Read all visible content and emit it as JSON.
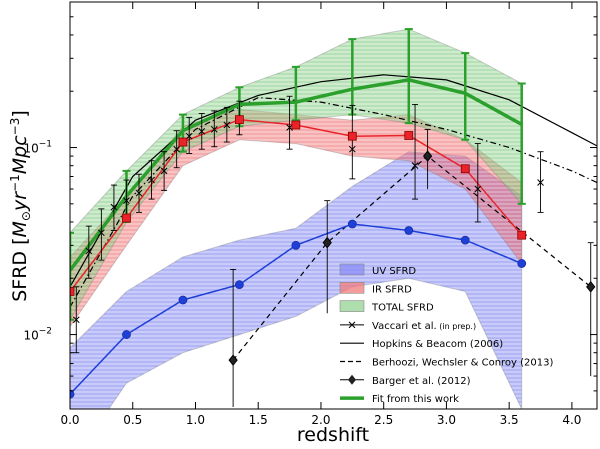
{
  "chart_data": {
    "type": "line",
    "xlabel": "redshift",
    "ylabel": "SFRD [M⊙yr⁻¹Mpc⁻³]",
    "ylabel_prefix": "SFRD [",
    "ylabel_unit": "M",
    "ylabel_unit_sub": "⊙",
    "ylabel_yr": "yr",
    "ylabel_yr_sup": "−1",
    "ylabel_mpc": "Mpc",
    "ylabel_mpc_sup": "−3",
    "ylabel_suffix": "]",
    "xlim": [
      0.0,
      4.2
    ],
    "ylim": [
      0.004,
      0.6
    ],
    "yscale": "log",
    "x_ticks": [
      "0.0",
      "0.5",
      "1.0",
      "1.5",
      "2.0",
      "2.5",
      "3.0",
      "3.5",
      "4.0"
    ],
    "x_tick_values": [
      0.0,
      0.5,
      1.0,
      1.5,
      2.0,
      2.5,
      3.0,
      3.5,
      4.0
    ],
    "y_ticks": [
      {
        "value": 0.01,
        "base": "10",
        "exp": "−2"
      },
      {
        "value": 0.1,
        "base": "10",
        "exp": "−1"
      }
    ],
    "legend_position": "lower-right",
    "series": [
      {
        "name": "UV SFRD",
        "kind": "band-line",
        "color": "#1f3fd9",
        "fill": "#8a8cf5",
        "x": [
          0.0,
          0.45,
          0.9,
          1.35,
          1.8,
          2.25,
          2.7,
          3.15,
          3.6
        ],
        "values": [
          0.0048,
          0.01,
          0.0153,
          0.0185,
          0.03,
          0.039,
          0.036,
          0.032,
          0.024
        ],
        "band_low": [
          0.002,
          0.0055,
          0.008,
          0.01,
          0.0125,
          0.018,
          0.02,
          0.017,
          0.004
        ],
        "band_high": [
          0.0085,
          0.017,
          0.026,
          0.032,
          0.037,
          0.062,
          0.095,
          0.09,
          0.055
        ]
      },
      {
        "name": "IR SFRD",
        "kind": "band-line",
        "color": "#e8242a",
        "fill": "#f07b7b",
        "x": [
          0.0,
          0.45,
          0.9,
          1.35,
          1.8,
          2.25,
          2.7,
          3.15,
          3.6
        ],
        "values": [
          0.017,
          0.042,
          0.107,
          0.141,
          0.132,
          0.115,
          0.116,
          0.077,
          0.034
        ],
        "band_low": [
          0.011,
          0.03,
          0.08,
          0.11,
          0.105,
          0.09,
          0.085,
          0.06,
          0.024
        ],
        "band_high": [
          0.026,
          0.055,
          0.13,
          0.16,
          0.15,
          0.14,
          0.15,
          0.11,
          0.065
        ]
      },
      {
        "name": "TOTAL SFRD",
        "kind": "band-line",
        "color": "#2ca02c",
        "fill": "#93d293",
        "x": [
          0.0,
          0.45,
          0.9,
          1.35,
          1.8,
          2.25,
          2.7,
          3.15,
          3.6
        ],
        "values": [
          0.022,
          0.055,
          0.123,
          0.17,
          0.175,
          0.205,
          0.23,
          0.195,
          0.133
        ],
        "band_low": [
          0.012,
          0.04,
          0.095,
          0.13,
          0.14,
          0.15,
          0.135,
          0.11,
          0.05
        ],
        "band_high": [
          0.035,
          0.075,
          0.15,
          0.21,
          0.27,
          0.38,
          0.43,
          0.32,
          0.22
        ]
      },
      {
        "name": "Vaccari et al.",
        "name_note": "(in prep.)",
        "kind": "errorbar-x",
        "color": "#000000",
        "x": [
          0.05,
          0.15,
          0.25,
          0.35,
          0.45,
          0.55,
          0.65,
          0.75,
          0.85,
          0.95,
          1.05,
          1.15,
          1.25,
          1.35,
          1.75,
          2.25,
          2.75,
          3.25,
          3.75
        ],
        "values": [
          0.012,
          0.028,
          0.035,
          0.048,
          0.052,
          0.057,
          0.067,
          0.075,
          0.098,
          0.115,
          0.122,
          0.125,
          0.132,
          0.142,
          0.128,
          0.098,
          0.08,
          0.06,
          0.065
        ],
        "err_low": [
          0.004,
          0.008,
          0.01,
          0.012,
          0.012,
          0.012,
          0.014,
          0.016,
          0.02,
          0.022,
          0.024,
          0.024,
          0.025,
          0.025,
          0.03,
          0.03,
          0.027,
          0.02,
          0.02
        ],
        "err_high": [
          0.006,
          0.01,
          0.012,
          0.015,
          0.015,
          0.015,
          0.018,
          0.02,
          0.025,
          0.03,
          0.03,
          0.032,
          0.032,
          0.035,
          0.06,
          0.07,
          0.09,
          0.045,
          0.03
        ]
      },
      {
        "name": "Hopkins & Beacom (2006)",
        "kind": "line",
        "color": "#000000",
        "x": [
          0.0,
          0.5,
          1.0,
          1.5,
          2.0,
          2.5,
          3.0,
          3.5,
          4.0,
          4.2
        ],
        "values": [
          0.018,
          0.07,
          0.14,
          0.19,
          0.225,
          0.245,
          0.23,
          0.18,
          0.12,
          0.102
        ]
      },
      {
        "name": "Berhoozi, Wechsler & Conroy (2013)",
        "kind": "dashdot",
        "color": "#000000",
        "x": [
          0.0,
          0.5,
          1.0,
          1.5,
          2.0,
          2.5,
          3.0,
          3.5,
          4.0,
          4.2
        ],
        "values": [
          0.014,
          0.055,
          0.125,
          0.185,
          0.175,
          0.15,
          0.125,
          0.1,
          0.075,
          0.065
        ]
      },
      {
        "name": "Barger et al. (2012)",
        "kind": "diamond-dashed",
        "color": "#000000",
        "x": [
          1.3,
          2.05,
          2.85,
          4.15
        ],
        "values": [
          0.0073,
          0.031,
          0.09,
          0.018
        ],
        "err_low": [
          0.005,
          0.018,
          0.03,
          0.012
        ],
        "err_high": [
          0.015,
          0.021,
          0.035,
          0.013
        ]
      },
      {
        "name": "Fit from this work",
        "kind": "thick-line",
        "color": "#2ca02c",
        "x": [
          0.0,
          0.45,
          0.9,
          1.35,
          1.8,
          2.25,
          2.7,
          3.15,
          3.6
        ],
        "values": [
          0.022,
          0.055,
          0.123,
          0.17,
          0.175,
          0.205,
          0.23,
          0.195,
          0.133
        ]
      }
    ]
  }
}
